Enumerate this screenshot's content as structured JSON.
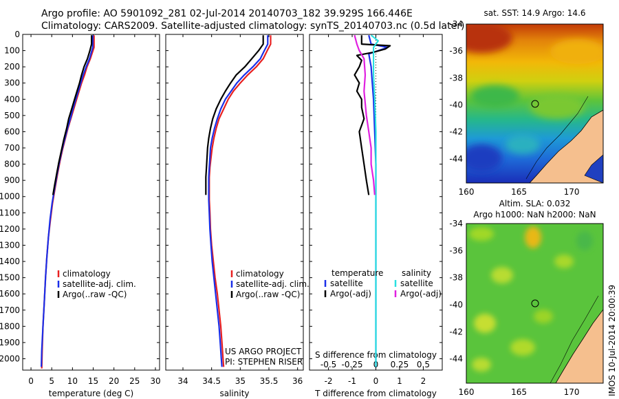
{
  "header": {
    "line1": "Argo profile: AO 5901092_281 02-Jul-2014 20140703_182 39.929S 166.446E",
    "line2": "Climatology: CARS2009. Satellite-adjusted climatology: synTS_20140703.nc (0.5d later)"
  },
  "side_label": "IMOS 10-Jul-2014 20:00:39",
  "colors": {
    "climatology": "#e82020",
    "satellite": "#1a2ee8",
    "argo": "#000000",
    "sal_sat": "#2ae0e0",
    "sal_argo": "#e020e0"
  },
  "chart_data": [
    {
      "type": "line",
      "xlabel": "temperature (deg C)",
      "ylabel": "",
      "xlim": [
        -2,
        31
      ],
      "ylim": [
        2070,
        0
      ],
      "xticks": [
        0,
        5,
        10,
        15,
        20,
        25,
        30
      ],
      "yticks": [
        0,
        100,
        200,
        300,
        400,
        500,
        600,
        700,
        800,
        900,
        1000,
        1100,
        1200,
        1300,
        1400,
        1500,
        1600,
        1700,
        1800,
        1900,
        2000
      ],
      "legend": [
        "climatology",
        "satellite-adj. clim.",
        "Argo(..raw -QC)"
      ],
      "series": [
        {
          "name": "climatology",
          "color": "#e82020",
          "points": [
            [
              15.2,
              5
            ],
            [
              15.2,
              80
            ],
            [
              14.3,
              150
            ],
            [
              13.5,
              200
            ],
            [
              12.9,
              250
            ],
            [
              12.2,
              300
            ],
            [
              11.6,
              350
            ],
            [
              11,
              400
            ],
            [
              10.3,
              460
            ],
            [
              9.6,
              520
            ],
            [
              8.9,
              580
            ],
            [
              8.3,
              640
            ],
            [
              7.6,
              710
            ],
            [
              7,
              780
            ],
            [
              6.4,
              860
            ],
            [
              5.8,
              950
            ],
            [
              5.2,
              1040
            ],
            [
              4.7,
              1140
            ],
            [
              4.2,
              1250
            ],
            [
              3.8,
              1380
            ],
            [
              3.5,
              1500
            ],
            [
              3.2,
              1650
            ],
            [
              2.9,
              1800
            ],
            [
              2.7,
              1950
            ],
            [
              2.6,
              2060
            ]
          ]
        },
        {
          "name": "satellite-adj. clim.",
          "color": "#1a2ee8",
          "points": [
            [
              14.9,
              5
            ],
            [
              14.9,
              80
            ],
            [
              14.1,
              150
            ],
            [
              13.3,
              200
            ],
            [
              12.6,
              250
            ],
            [
              12,
              300
            ],
            [
              11.4,
              350
            ],
            [
              10.8,
              400
            ],
            [
              10.1,
              460
            ],
            [
              9.5,
              520
            ],
            [
              8.8,
              580
            ],
            [
              8.2,
              640
            ],
            [
              7.5,
              710
            ],
            [
              6.9,
              780
            ],
            [
              6.3,
              860
            ],
            [
              5.7,
              950
            ],
            [
              5.1,
              1040
            ],
            [
              4.6,
              1140
            ],
            [
              4.2,
              1250
            ],
            [
              3.8,
              1380
            ],
            [
              3.5,
              1500
            ],
            [
              3.2,
              1650
            ],
            [
              2.9,
              1800
            ],
            [
              2.6,
              1950
            ],
            [
              2.5,
              2050
            ]
          ]
        },
        {
          "name": "Argo(..raw -QC)",
          "color": "#000000",
          "points": [
            [
              14.6,
              5
            ],
            [
              14.6,
              60
            ],
            [
              14.2,
              100
            ],
            [
              13.6,
              150
            ],
            [
              12.8,
              200
            ],
            [
              12.2,
              250
            ],
            [
              11.7,
              300
            ],
            [
              11.1,
              350
            ],
            [
              10.5,
              400
            ],
            [
              9.8,
              460
            ],
            [
              9.1,
              520
            ],
            [
              8.6,
              580
            ],
            [
              7.9,
              650
            ],
            [
              7.3,
              720
            ],
            [
              6.7,
              790
            ],
            [
              6.2,
              860
            ],
            [
              5.7,
              930
            ],
            [
              5.3,
              990
            ]
          ]
        }
      ]
    },
    {
      "type": "line",
      "xlabel": "salinity",
      "ylabel": "",
      "xlim": [
        33.7,
        36.1
      ],
      "ylim": [
        2070,
        0
      ],
      "xticks": [
        34,
        34.5,
        35,
        35.5,
        36
      ],
      "legend": [
        "climatology",
        "satellite-adj. clim.",
        "Argo(..raw -QC)"
      ],
      "annotation": [
        "US ARGO PROJECT",
        "PI: STEPHEN RISER"
      ],
      "series": [
        {
          "name": "climatology",
          "color": "#e82020",
          "points": [
            [
              35.53,
              5
            ],
            [
              35.53,
              60
            ],
            [
              35.47,
              100
            ],
            [
              35.4,
              150
            ],
            [
              35.28,
              200
            ],
            [
              35.13,
              250
            ],
            [
              35,
              300
            ],
            [
              34.88,
              350
            ],
            [
              34.79,
              400
            ],
            [
              34.71,
              460
            ],
            [
              34.63,
              520
            ],
            [
              34.58,
              580
            ],
            [
              34.54,
              640
            ],
            [
              34.51,
              700
            ],
            [
              34.49,
              760
            ],
            [
              34.47,
              820
            ],
            [
              34.46,
              880
            ],
            [
              34.46,
              950
            ],
            [
              34.46,
              1020
            ],
            [
              34.47,
              1100
            ],
            [
              34.48,
              1200
            ],
            [
              34.5,
              1300
            ],
            [
              34.53,
              1400
            ],
            [
              34.56,
              1500
            ],
            [
              34.6,
              1600
            ],
            [
              34.63,
              1700
            ],
            [
              34.66,
              1800
            ],
            [
              34.68,
              1900
            ],
            [
              34.7,
              2000
            ],
            [
              34.71,
              2050
            ]
          ]
        },
        {
          "name": "satellite-adj. clim.",
          "color": "#1a2ee8",
          "points": [
            [
              35.48,
              5
            ],
            [
              35.48,
              60
            ],
            [
              35.42,
              100
            ],
            [
              35.35,
              150
            ],
            [
              35.22,
              200
            ],
            [
              35.07,
              250
            ],
            [
              34.94,
              300
            ],
            [
              34.84,
              350
            ],
            [
              34.74,
              400
            ],
            [
              34.66,
              460
            ],
            [
              34.6,
              520
            ],
            [
              34.55,
              580
            ],
            [
              34.51,
              640
            ],
            [
              34.48,
              700
            ],
            [
              34.47,
              760
            ],
            [
              34.46,
              820
            ],
            [
              34.45,
              880
            ],
            [
              34.45,
              950
            ],
            [
              34.45,
              1020
            ],
            [
              34.46,
              1100
            ],
            [
              34.47,
              1200
            ],
            [
              34.49,
              1300
            ],
            [
              34.51,
              1400
            ],
            [
              34.54,
              1500
            ],
            [
              34.57,
              1600
            ],
            [
              34.6,
              1700
            ],
            [
              34.63,
              1800
            ],
            [
              34.65,
              1900
            ],
            [
              34.67,
              2000
            ],
            [
              34.68,
              2050
            ]
          ]
        },
        {
          "name": "Argo(..raw -QC)",
          "color": "#000000",
          "points": [
            [
              35.4,
              5
            ],
            [
              35.4,
              60
            ],
            [
              35.32,
              100
            ],
            [
              35.2,
              150
            ],
            [
              35.08,
              200
            ],
            [
              34.93,
              250
            ],
            [
              34.83,
              300
            ],
            [
              34.74,
              350
            ],
            [
              34.66,
              400
            ],
            [
              34.58,
              460
            ],
            [
              34.52,
              520
            ],
            [
              34.48,
              580
            ],
            [
              34.45,
              640
            ],
            [
              34.43,
              700
            ],
            [
              34.42,
              760
            ],
            [
              34.41,
              820
            ],
            [
              34.4,
              880
            ],
            [
              34.4,
              940
            ],
            [
              34.4,
              990
            ]
          ]
        }
      ]
    },
    {
      "type": "line",
      "xlabel": "T difference from climatology",
      "xlabel2": "S difference from climatology",
      "xlim": [
        -2.8,
        2.8
      ],
      "ylim": [
        2070,
        0
      ],
      "xticks": [
        -2,
        -1,
        0,
        1,
        2
      ],
      "xticks2": [
        {
          "label": "-0.5",
          "t": -2
        },
        {
          "label": "-0.25",
          "t": -1
        },
        {
          "label": "0",
          "t": 0
        },
        {
          "label": "0.25",
          "t": 1
        },
        {
          "label": "0.5",
          "t": 2
        }
      ],
      "legend_temperature": [
        "temperature",
        "satellite",
        "Argo(-adj)"
      ],
      "legend_salinity": [
        "salinity",
        "satellite",
        "Argo(-adj)"
      ],
      "series": [
        {
          "name": "temperature satellite",
          "color": "#1a2ee8",
          "points": [
            [
              -0.3,
              5
            ],
            [
              -0.2,
              60
            ],
            [
              0.5,
              80
            ],
            [
              -0.3,
              120
            ],
            [
              -0.2,
              200
            ],
            [
              -0.15,
              300
            ],
            [
              -0.1,
              400
            ],
            [
              -0.05,
              600
            ],
            [
              0,
              800
            ],
            [
              0,
              1000
            ],
            [
              0,
              1200
            ],
            [
              0,
              1500
            ],
            [
              0,
              1800
            ],
            [
              0,
              2050
            ]
          ]
        },
        {
          "name": "temperature Argo(-adj)",
          "color": "#000000",
          "points": [
            [
              -0.6,
              5
            ],
            [
              -0.6,
              60
            ],
            [
              0.6,
              70
            ],
            [
              0.4,
              90
            ],
            [
              -0.1,
              110
            ],
            [
              -0.8,
              130
            ],
            [
              -0.6,
              160
            ],
            [
              -0.7,
              200
            ],
            [
              -0.9,
              250
            ],
            [
              -0.7,
              300
            ],
            [
              -0.8,
              350
            ],
            [
              -0.6,
              400
            ],
            [
              -0.6,
              450
            ],
            [
              -0.5,
              520
            ],
            [
              -0.7,
              600
            ],
            [
              -0.6,
              700
            ],
            [
              -0.5,
              800
            ],
            [
              -0.4,
              900
            ],
            [
              -0.3,
              990
            ]
          ]
        },
        {
          "name": "salinity satellite",
          "color": "#2ae0e0",
          "points": [
            [
              -0.2,
              5
            ],
            [
              0.1,
              40
            ],
            [
              -0.1,
              80
            ],
            [
              -0.1,
              150
            ],
            [
              -0.1,
              250
            ],
            [
              -0.05,
              400
            ],
            [
              0,
              600
            ],
            [
              0,
              800
            ],
            [
              0,
              1000
            ],
            [
              0,
              1400
            ],
            [
              0,
              1800
            ],
            [
              0,
              2050
            ]
          ]
        },
        {
          "name": "salinity Argo(-adj)",
          "color": "#e020e0",
          "points": [
            [
              -0.9,
              5
            ],
            [
              -0.8,
              60
            ],
            [
              -0.7,
              100
            ],
            [
              -0.5,
              150
            ],
            [
              -0.45,
              250
            ],
            [
              -0.5,
              350
            ],
            [
              -0.4,
              500
            ],
            [
              -0.3,
              600
            ],
            [
              -0.2,
              700
            ],
            [
              -0.2,
              800
            ],
            [
              -0.1,
              900
            ],
            [
              -0.05,
              990
            ]
          ]
        }
      ]
    },
    {
      "type": "heatmap",
      "title": "sat. SST: 14.9 Argo: 14.6",
      "xlim": [
        160,
        173
      ],
      "ylim": [
        -45.8,
        -34
      ],
      "xticks": [
        160,
        165,
        170
      ],
      "yticks": [
        -34,
        -36,
        -38,
        -40,
        -42,
        -44
      ],
      "marker": {
        "lon": 166.446,
        "lat": -39.929
      }
    },
    {
      "type": "heatmap",
      "title": "Altim. SLA: 0.032",
      "subtitle": "Argo h1000: NaN h2000: NaN",
      "xlim": [
        160,
        173
      ],
      "ylim": [
        -45.8,
        -34
      ],
      "xticks": [
        160,
        165,
        170
      ],
      "yticks": [
        -34,
        -36,
        -38,
        -40,
        -42,
        -44
      ],
      "marker": {
        "lon": 166.446,
        "lat": -39.929
      }
    }
  ]
}
